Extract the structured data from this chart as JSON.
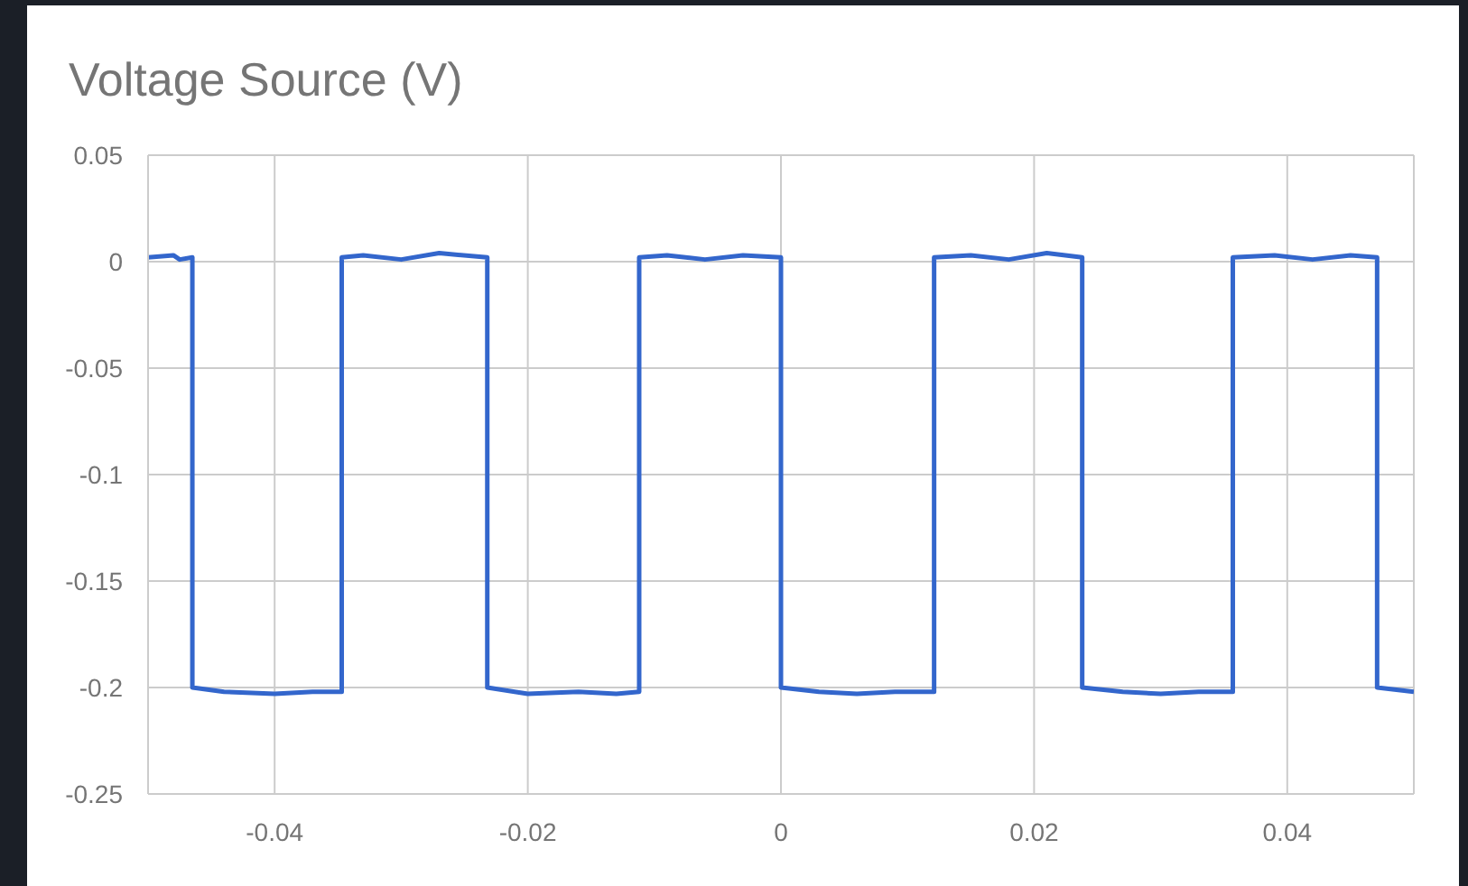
{
  "chart_data": {
    "type": "line",
    "title": "Voltage Source (V)",
    "x": [
      -0.05,
      -0.048,
      -0.0475,
      -0.0465,
      -0.0465,
      -0.044,
      -0.04,
      -0.037,
      -0.0347,
      -0.0347,
      -0.033,
      -0.03,
      -0.027,
      -0.0232,
      -0.0232,
      -0.02,
      -0.016,
      -0.013,
      -0.0112,
      -0.0112,
      -0.009,
      -0.006,
      -0.003,
      0,
      0,
      0.003,
      0.006,
      0.009,
      0.0121,
      0.0121,
      0.015,
      0.018,
      0.021,
      0.0238,
      0.0238,
      0.027,
      0.03,
      0.033,
      0.0357,
      0.0357,
      0.039,
      0.042,
      0.045,
      0.0471,
      0.0471,
      0.05
    ],
    "values": [
      0.002,
      0.003,
      0.001,
      0.002,
      -0.2,
      -0.202,
      -0.203,
      -0.202,
      -0.202,
      0.002,
      0.003,
      0.001,
      0.004,
      0.002,
      -0.2,
      -0.203,
      -0.202,
      -0.203,
      -0.202,
      0.002,
      0.003,
      0.001,
      0.003,
      0.002,
      -0.2,
      -0.202,
      -0.203,
      -0.202,
      -0.202,
      0.002,
      0.003,
      0.001,
      0.004,
      0.002,
      -0.2,
      -0.202,
      -0.203,
      -0.202,
      -0.202,
      0.002,
      0.003,
      0.001,
      0.003,
      0.002,
      -0.2,
      -0.202
    ],
    "color": "#3366cc",
    "xlim": [
      -0.05,
      0.05
    ],
    "xticks": [
      -0.04,
      -0.02,
      0,
      0.02,
      0.04
    ],
    "ylim": [
      -0.25,
      0.05
    ],
    "yticks": [
      0.05,
      0,
      -0.05,
      -0.1,
      -0.15,
      -0.2,
      -0.25
    ],
    "grid": true,
    "marker": "none",
    "line_style": "solid"
  }
}
